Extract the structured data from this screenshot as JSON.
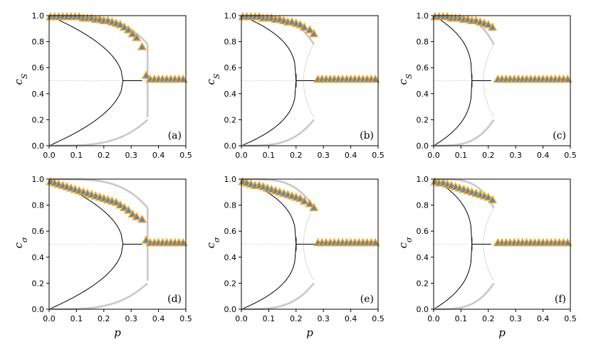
{
  "figure": {
    "rows": 2,
    "cols": 3
  },
  "chart_data": [
    {
      "type": "line",
      "panel": "(a)",
      "ylabel_main": "c",
      "ylabel_sub": "S",
      "xlabel": "",
      "xlim": [
        0,
        0.5
      ],
      "ylim": [
        0,
        1
      ],
      "xticks": [
        "0.0",
        "0.1",
        "0.2",
        "0.3",
        "0.4",
        "0.5"
      ],
      "yticks": [
        "0.0",
        "0.2",
        "0.4",
        "0.6",
        "0.8",
        "1.0"
      ],
      "pc": 0.27,
      "gray_end": 0.36,
      "dotted_end": 0.36,
      "middle_x": 0.15,
      "gray_low_end": 0.5,
      "gray_high_end": 0.75,
      "kind": "a",
      "markers_x": [
        0.005,
        0.02,
        0.035,
        0.05,
        0.065,
        0.08,
        0.095,
        0.11,
        0.125,
        0.14,
        0.155,
        0.17,
        0.185,
        0.2,
        0.215,
        0.23,
        0.245,
        0.26,
        0.275,
        0.29,
        0.305,
        0.32,
        0.34,
        0.355,
        0.37,
        0.385,
        0.4,
        0.415,
        0.43,
        0.445,
        0.46,
        0.475,
        0.49
      ],
      "markers_y": [
        0.99,
        0.99,
        0.99,
        0.99,
        0.99,
        0.99,
        0.99,
        0.99,
        0.98,
        0.98,
        0.98,
        0.97,
        0.97,
        0.96,
        0.96,
        0.95,
        0.94,
        0.93,
        0.91,
        0.89,
        0.86,
        0.83,
        0.76,
        0.54,
        0.51,
        0.51,
        0.51,
        0.51,
        0.51,
        0.51,
        0.51,
        0.51,
        0.51
      ]
    },
    {
      "type": "line",
      "panel": "(b)",
      "ylabel_main": "c",
      "ylabel_sub": "S",
      "xlabel": "",
      "xlim": [
        0,
        0.5
      ],
      "ylim": [
        0,
        1
      ],
      "xticks": [
        "0.0",
        "0.1",
        "0.2",
        "0.3",
        "0.4",
        "0.5"
      ],
      "yticks": [
        "0.0",
        "0.2",
        "0.4",
        "0.6",
        "0.8",
        "1.0"
      ],
      "pc": 0.2,
      "gray_end": 0.265,
      "kind": "b",
      "markers_x": [
        0.005,
        0.02,
        0.035,
        0.05,
        0.065,
        0.08,
        0.095,
        0.11,
        0.125,
        0.14,
        0.155,
        0.17,
        0.185,
        0.2,
        0.215,
        0.23,
        0.25,
        0.265,
        0.28,
        0.295,
        0.31,
        0.325,
        0.34,
        0.355,
        0.37,
        0.385,
        0.4,
        0.415,
        0.43,
        0.445,
        0.46,
        0.475,
        0.49
      ],
      "markers_y": [
        0.99,
        0.99,
        0.99,
        0.99,
        0.99,
        0.98,
        0.98,
        0.98,
        0.97,
        0.97,
        0.96,
        0.95,
        0.95,
        0.94,
        0.93,
        0.91,
        0.89,
        0.86,
        0.51,
        0.51,
        0.51,
        0.51,
        0.51,
        0.51,
        0.51,
        0.51,
        0.51,
        0.51,
        0.51,
        0.51,
        0.51,
        0.51,
        0.51
      ]
    },
    {
      "type": "line",
      "panel": "(c)",
      "ylabel_main": "c",
      "ylabel_sub": "S",
      "xlabel": "",
      "xlim": [
        0,
        0.5
      ],
      "ylim": [
        0,
        1
      ],
      "xticks": [
        "0.0",
        "0.1",
        "0.2",
        "0.3",
        "0.4",
        "0.5"
      ],
      "yticks": [
        "0.0",
        "0.2",
        "0.4",
        "0.6",
        "0.8",
        "1.0"
      ],
      "pc": 0.14,
      "gray_end": 0.22,
      "kind": "c",
      "markers_x": [
        0.005,
        0.02,
        0.035,
        0.05,
        0.065,
        0.08,
        0.095,
        0.11,
        0.125,
        0.14,
        0.155,
        0.17,
        0.185,
        0.2,
        0.215,
        0.235,
        0.25,
        0.265,
        0.28,
        0.295,
        0.31,
        0.325,
        0.34,
        0.355,
        0.37,
        0.385,
        0.4,
        0.415,
        0.43,
        0.445,
        0.46,
        0.475,
        0.49
      ],
      "markers_y": [
        0.99,
        0.99,
        0.99,
        0.99,
        0.98,
        0.98,
        0.98,
        0.97,
        0.97,
        0.96,
        0.96,
        0.95,
        0.94,
        0.93,
        0.91,
        0.51,
        0.51,
        0.51,
        0.51,
        0.51,
        0.51,
        0.51,
        0.51,
        0.51,
        0.51,
        0.51,
        0.51,
        0.51,
        0.51,
        0.51,
        0.51,
        0.51,
        0.51
      ]
    },
    {
      "type": "line",
      "panel": "(d)",
      "ylabel_main": "c",
      "ylabel_sub": "σ",
      "xlabel": "p",
      "xlim": [
        0,
        0.5
      ],
      "ylim": [
        0,
        1
      ],
      "xticks": [
        "0.0",
        "0.1",
        "0.2",
        "0.3",
        "0.4",
        "0.5"
      ],
      "yticks": [
        "0.0",
        "0.2",
        "0.4",
        "0.6",
        "0.8",
        "1.0"
      ],
      "pc": 0.27,
      "gray_end": 0.36,
      "kind": "a",
      "markers_x": [
        0.005,
        0.02,
        0.035,
        0.05,
        0.065,
        0.08,
        0.095,
        0.11,
        0.125,
        0.14,
        0.155,
        0.17,
        0.185,
        0.2,
        0.215,
        0.23,
        0.245,
        0.26,
        0.275,
        0.29,
        0.305,
        0.32,
        0.34,
        0.355,
        0.37,
        0.385,
        0.4,
        0.415,
        0.43,
        0.445,
        0.46,
        0.475,
        0.49
      ],
      "markers_y": [
        0.98,
        0.97,
        0.96,
        0.95,
        0.94,
        0.93,
        0.92,
        0.91,
        0.9,
        0.89,
        0.88,
        0.87,
        0.86,
        0.85,
        0.84,
        0.83,
        0.82,
        0.8,
        0.78,
        0.76,
        0.73,
        0.71,
        0.69,
        0.53,
        0.51,
        0.51,
        0.51,
        0.51,
        0.51,
        0.51,
        0.51,
        0.51,
        0.51
      ]
    },
    {
      "type": "line",
      "panel": "(e)",
      "ylabel_main": "c",
      "ylabel_sub": "σ",
      "xlabel": "p",
      "xlim": [
        0,
        0.5
      ],
      "ylim": [
        0,
        1
      ],
      "xticks": [
        "0.0",
        "0.1",
        "0.2",
        "0.3",
        "0.4",
        "0.5"
      ],
      "yticks": [
        "0.0",
        "0.2",
        "0.4",
        "0.6",
        "0.8",
        "1.0"
      ],
      "pc": 0.2,
      "gray_end": 0.265,
      "kind": "b",
      "markers_x": [
        0.005,
        0.02,
        0.035,
        0.05,
        0.065,
        0.08,
        0.095,
        0.11,
        0.125,
        0.14,
        0.155,
        0.17,
        0.185,
        0.2,
        0.215,
        0.23,
        0.25,
        0.265,
        0.28,
        0.295,
        0.31,
        0.325,
        0.34,
        0.355,
        0.37,
        0.385,
        0.4,
        0.415,
        0.43,
        0.445,
        0.46,
        0.475,
        0.49
      ],
      "markers_y": [
        0.98,
        0.97,
        0.96,
        0.95,
        0.95,
        0.94,
        0.93,
        0.92,
        0.91,
        0.9,
        0.89,
        0.88,
        0.87,
        0.86,
        0.85,
        0.83,
        0.81,
        0.78,
        0.51,
        0.51,
        0.51,
        0.51,
        0.51,
        0.51,
        0.51,
        0.51,
        0.51,
        0.51,
        0.51,
        0.51,
        0.51,
        0.51,
        0.51
      ]
    },
    {
      "type": "line",
      "panel": "(f)",
      "ylabel_main": "c",
      "ylabel_sub": "σ",
      "xlabel": "p",
      "xlim": [
        0,
        0.5
      ],
      "ylim": [
        0,
        1
      ],
      "xticks": [
        "0.0",
        "0.1",
        "0.2",
        "0.3",
        "0.4",
        "0.5"
      ],
      "yticks": [
        "0.0",
        "0.2",
        "0.4",
        "0.6",
        "0.8",
        "1.0"
      ],
      "pc": 0.14,
      "gray_end": 0.22,
      "kind": "c",
      "markers_x": [
        0.005,
        0.02,
        0.035,
        0.05,
        0.065,
        0.08,
        0.095,
        0.11,
        0.125,
        0.14,
        0.155,
        0.17,
        0.185,
        0.2,
        0.215,
        0.235,
        0.25,
        0.265,
        0.28,
        0.295,
        0.31,
        0.325,
        0.34,
        0.355,
        0.37,
        0.385,
        0.4,
        0.415,
        0.43,
        0.445,
        0.46,
        0.475,
        0.49
      ],
      "markers_y": [
        0.98,
        0.97,
        0.97,
        0.96,
        0.95,
        0.94,
        0.93,
        0.92,
        0.91,
        0.9,
        0.89,
        0.88,
        0.87,
        0.86,
        0.84,
        0.51,
        0.51,
        0.51,
        0.51,
        0.51,
        0.51,
        0.51,
        0.51,
        0.51,
        0.51,
        0.51,
        0.51,
        0.51,
        0.51,
        0.51,
        0.51,
        0.51,
        0.51
      ]
    }
  ],
  "colors": {
    "marker_fill": "#4f8bbf",
    "marker_edge": "#f5a021",
    "gray_curve": "#c8c8c8",
    "theory_curve": "#000000",
    "reference_line": "#bdbdbd"
  }
}
